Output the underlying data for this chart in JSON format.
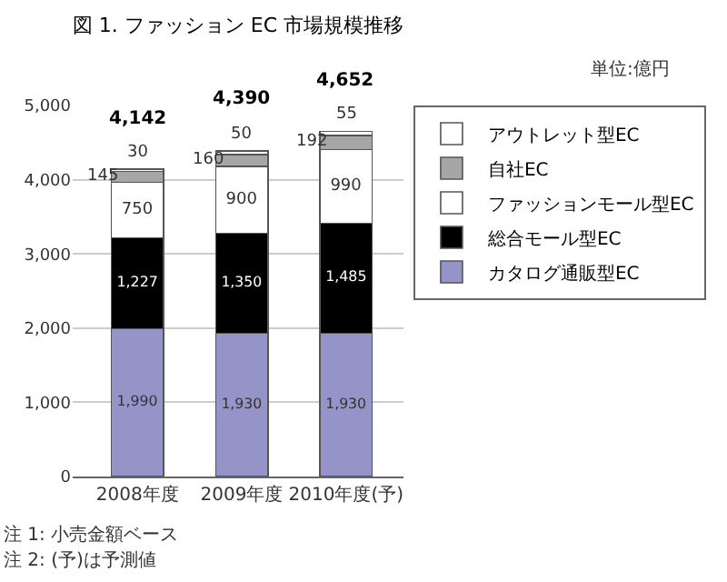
{
  "chart_data": {
    "type": "bar",
    "stacked": true,
    "title": "図 1. ファッション EC 市場規模推移",
    "categories": [
      "2008年度",
      "2009年度",
      "2010年度(予)"
    ],
    "series": [
      {
        "name": "カタログ通販型EC",
        "color": "#9494c8",
        "values": [
          1990,
          1930,
          1930
        ],
        "value_labels": [
          "1,990",
          "1,930",
          "1,930"
        ]
      },
      {
        "name": "総合モール型EC",
        "color": "#000000",
        "values": [
          1227,
          1350,
          1485
        ],
        "value_labels": [
          "1,227",
          "1,350",
          "1,485"
        ]
      },
      {
        "name": "ファッションモール型EC",
        "color": "#ffffff",
        "values": [
          750,
          900,
          990
        ],
        "value_labels": [
          "750",
          "900",
          "990"
        ]
      },
      {
        "name": "自社EC",
        "color": "#a6a6a6",
        "values": [
          145,
          160,
          192
        ],
        "value_labels": [
          "145",
          "160",
          "192"
        ]
      },
      {
        "name": "アウトレット型EC",
        "color": "#ffffff",
        "values": [
          30,
          50,
          55
        ],
        "value_labels": [
          "30",
          "50",
          "55"
        ]
      }
    ],
    "totals": [
      "4,142",
      "4,390",
      "4,652"
    ],
    "ylim": [
      0,
      5000
    ],
    "yticks": [
      0,
      {
        "value": 1000,
        "label": "1,000"
      },
      {
        "value": 2000,
        "label": "2,000"
      },
      {
        "value": 3000,
        "label": "3,000"
      },
      {
        "value": 4000,
        "label": "4,000"
      },
      {
        "value": 5000,
        "label": "5,000"
      }
    ],
    "grid": "y",
    "legend": "top right",
    "annotations": [
      "単位:億円",
      "注 1: 小売金額ベース",
      "注 2: (予)は予測値"
    ]
  }
}
